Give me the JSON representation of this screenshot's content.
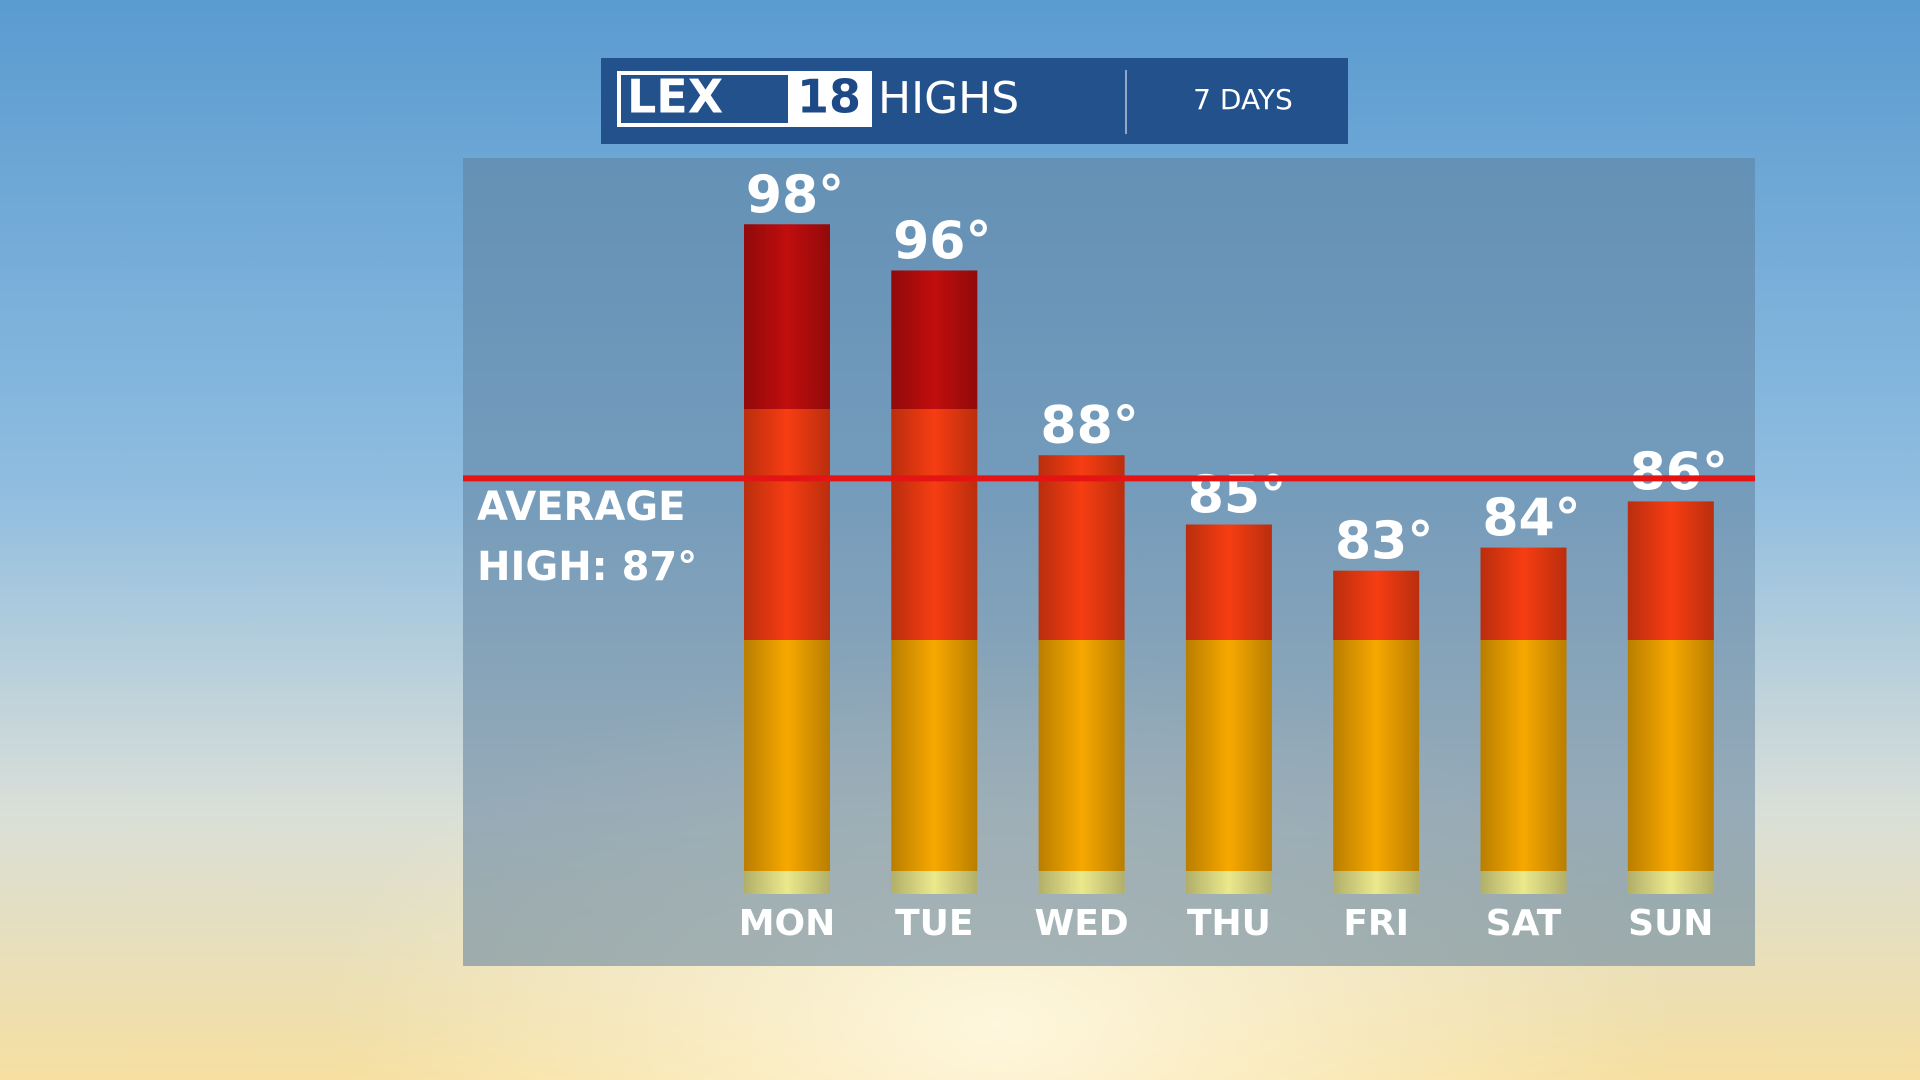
{
  "chart_data": {
    "type": "bar",
    "logo": "LEX",
    "logo_number": "18",
    "title": "HIGHS",
    "subtitle": "7 DAYS",
    "categories": [
      "MON",
      "TUE",
      "WED",
      "THU",
      "FRI",
      "SAT",
      "SUN"
    ],
    "values": [
      98,
      96,
      88,
      85,
      83,
      84,
      86
    ],
    "value_labels": [
      "98°",
      "96°",
      "88°",
      "85°",
      "83°",
      "84°",
      "86°"
    ],
    "ylim": [
      69,
      101
    ],
    "bands": [
      {
        "to": 70,
        "color": "#ebe98c"
      },
      {
        "to": 80,
        "color": "#f7a800"
      },
      {
        "to": 90,
        "color": "#f73d12"
      }
    ],
    "top_color": "#c10d0d",
    "reference_line": {
      "value": 87,
      "color": "#e41414",
      "label": [
        "AVERAGE",
        "HIGH: 87°"
      ]
    }
  }
}
